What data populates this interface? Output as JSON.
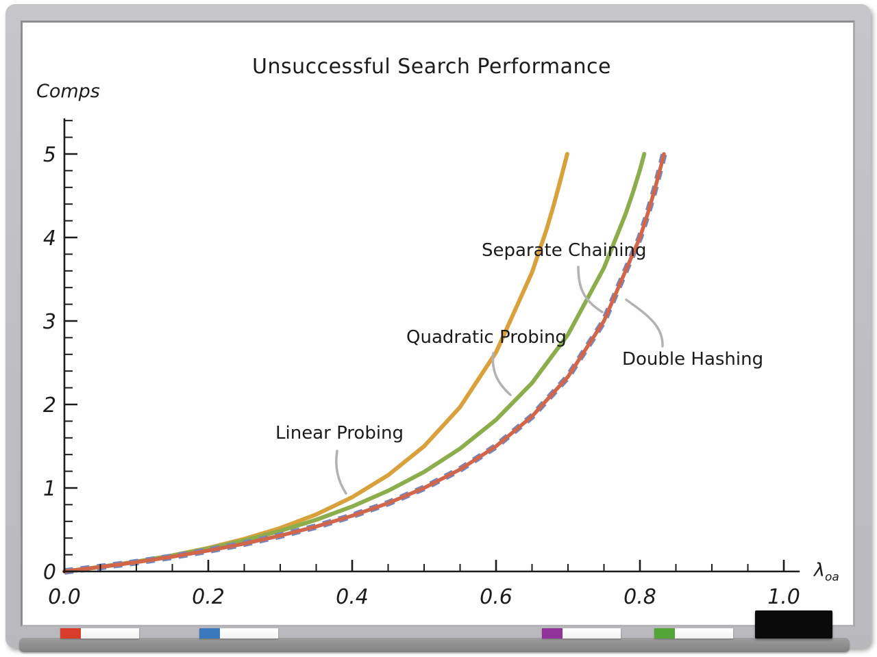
{
  "chart_data": {
    "type": "line",
    "title": "Unsuccessful Search Performance",
    "ylabel": "Comps",
    "xlabel_symbol": "λ",
    "xlabel_subscript": "oa",
    "xlim": [
      0.0,
      1.02
    ],
    "ylim": [
      0,
      5.4
    ],
    "grid": false,
    "legend_position": "inline-annotations",
    "x_major_ticks": [
      0.0,
      0.2,
      0.4,
      0.6,
      0.8,
      1.0
    ],
    "x_tick_labels": [
      "0.0",
      "0.2",
      "0.4",
      "0.6",
      "0.8",
      "1.0"
    ],
    "x_minor_step": 0.05,
    "y_major_ticks": [
      0,
      1,
      2,
      3,
      4,
      5
    ],
    "y_tick_labels": [
      "0",
      "1",
      "2",
      "3",
      "4",
      "5"
    ],
    "y_minor_step": 0.2,
    "series": [
      {
        "name": "Linear Probing",
        "color": "#D9A13C",
        "style": "solid",
        "points": [
          [
            0,
            0
          ],
          [
            0.05,
            0.054
          ],
          [
            0.1,
            0.117
          ],
          [
            0.15,
            0.192
          ],
          [
            0.2,
            0.281
          ],
          [
            0.25,
            0.389
          ],
          [
            0.3,
            0.52
          ],
          [
            0.35,
            0.683
          ],
          [
            0.4,
            0.889
          ],
          [
            0.45,
            1.153
          ],
          [
            0.5,
            1.5
          ],
          [
            0.55,
            1.969
          ],
          [
            0.6,
            2.625
          ],
          [
            0.65,
            3.582
          ],
          [
            0.67,
            4.091
          ],
          [
            0.68,
            4.383
          ],
          [
            0.69,
            4.703
          ],
          [
            0.699,
            5.0
          ]
        ]
      },
      {
        "name": "Quadratic Probing",
        "color": "#8CAD4B",
        "style": "solid",
        "points": [
          [
            0,
            0
          ],
          [
            0.05,
            0.054
          ],
          [
            0.1,
            0.116
          ],
          [
            0.15,
            0.189
          ],
          [
            0.2,
            0.273
          ],
          [
            0.25,
            0.371
          ],
          [
            0.3,
            0.485
          ],
          [
            0.35,
            0.619
          ],
          [
            0.4,
            0.778
          ],
          [
            0.45,
            0.966
          ],
          [
            0.5,
            1.193
          ],
          [
            0.55,
            1.471
          ],
          [
            0.6,
            1.816
          ],
          [
            0.65,
            2.257
          ],
          [
            0.7,
            2.837
          ],
          [
            0.75,
            3.636
          ],
          [
            0.78,
            4.28
          ],
          [
            0.79,
            4.532
          ],
          [
            0.8,
            4.809
          ],
          [
            0.806,
            5.0
          ]
        ]
      },
      {
        "name": "Separate Chaining",
        "color": "#7386BE",
        "style": "dashed",
        "points": [
          [
            0,
            0
          ],
          [
            0.05,
            0.053
          ],
          [
            0.1,
            0.111
          ],
          [
            0.15,
            0.176
          ],
          [
            0.2,
            0.25
          ],
          [
            0.25,
            0.333
          ],
          [
            0.3,
            0.429
          ],
          [
            0.35,
            0.538
          ],
          [
            0.4,
            0.667
          ],
          [
            0.45,
            0.818
          ],
          [
            0.5,
            1.0
          ],
          [
            0.55,
            1.222
          ],
          [
            0.6,
            1.5
          ],
          [
            0.65,
            1.857
          ],
          [
            0.7,
            2.333
          ],
          [
            0.75,
            3.0
          ],
          [
            0.8,
            4.0
          ],
          [
            0.81,
            4.263
          ],
          [
            0.82,
            4.556
          ],
          [
            0.83,
            4.882
          ],
          [
            0.8333,
            5.0
          ]
        ]
      },
      {
        "name": "Double Hashing",
        "color": "#D2664A",
        "style": "solid",
        "points": [
          [
            0,
            0
          ],
          [
            0.05,
            0.053
          ],
          [
            0.1,
            0.111
          ],
          [
            0.15,
            0.176
          ],
          [
            0.2,
            0.25
          ],
          [
            0.25,
            0.333
          ],
          [
            0.3,
            0.429
          ],
          [
            0.35,
            0.538
          ],
          [
            0.4,
            0.667
          ],
          [
            0.45,
            0.818
          ],
          [
            0.5,
            1.0
          ],
          [
            0.55,
            1.222
          ],
          [
            0.6,
            1.5
          ],
          [
            0.65,
            1.857
          ],
          [
            0.7,
            2.333
          ],
          [
            0.75,
            3.0
          ],
          [
            0.8,
            4.0
          ],
          [
            0.81,
            4.263
          ],
          [
            0.82,
            4.556
          ],
          [
            0.83,
            4.882
          ],
          [
            0.8333,
            5.0
          ]
        ]
      }
    ]
  },
  "tray": {
    "markers": [
      {
        "name": "red",
        "cap_color": "#D93B2B"
      },
      {
        "name": "blue",
        "cap_color": "#3A79BD"
      },
      {
        "name": "purple",
        "cap_color": "#90329A"
      },
      {
        "name": "green",
        "cap_color": "#55A437"
      }
    ],
    "eraser_color": "#0a0a0a"
  }
}
